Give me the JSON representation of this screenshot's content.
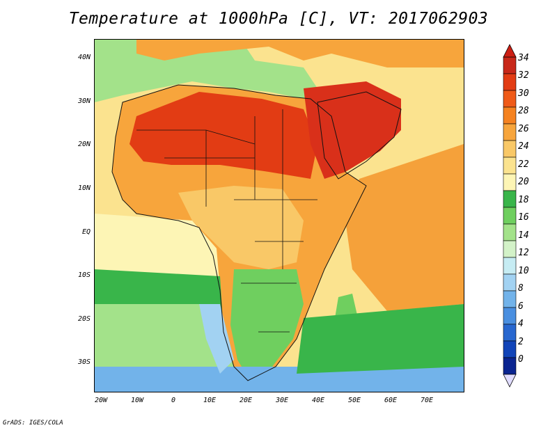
{
  "title": "Temperature at 1000hPa [C], VT: 2017062903",
  "credit": "GrADS: IGES/COLA",
  "latitude_labels": [
    "40N",
    "30N",
    "20N",
    "10N",
    "EQ",
    "10S",
    "20S",
    "30S"
  ],
  "longitude_labels": [
    "20W",
    "10W",
    "0",
    "10E",
    "20E",
    "30E",
    "40E",
    "50E",
    "60E",
    "70E"
  ],
  "colorbar": {
    "labels": [
      "34",
      "32",
      "30",
      "28",
      "26",
      "24",
      "22",
      "20",
      "18",
      "16",
      "14",
      "12",
      "10",
      "8",
      "6",
      "4",
      "2",
      "0"
    ],
    "colors": [
      "#c8281a",
      "#e23c14",
      "#ef5a18",
      "#f58220",
      "#f7a53c",
      "#f9c867",
      "#fbe38f",
      "#fdf5b5",
      "#39b54a",
      "#6fcf5f",
      "#a3e28a",
      "#d3f2c8",
      "#c6ecf3",
      "#a2d2f2",
      "#72b3ea",
      "#4a8fe0",
      "#2867cf",
      "#1144b8",
      "#0a2490"
    ],
    "over_color": "#cc1f14",
    "under_color": "#e0dcff"
  },
  "map_colors": {
    "ocean_cool": "#a3e28a",
    "ocean_mild": "#fdf5b5",
    "land_warm": "#f7a53c",
    "land_hot": "#e23c14",
    "arabia_hot": "#d9301a",
    "southern_cool": "#72b3ea",
    "indian_ocean": "#f5a13a",
    "atlantic_green": "#39b54a"
  }
}
